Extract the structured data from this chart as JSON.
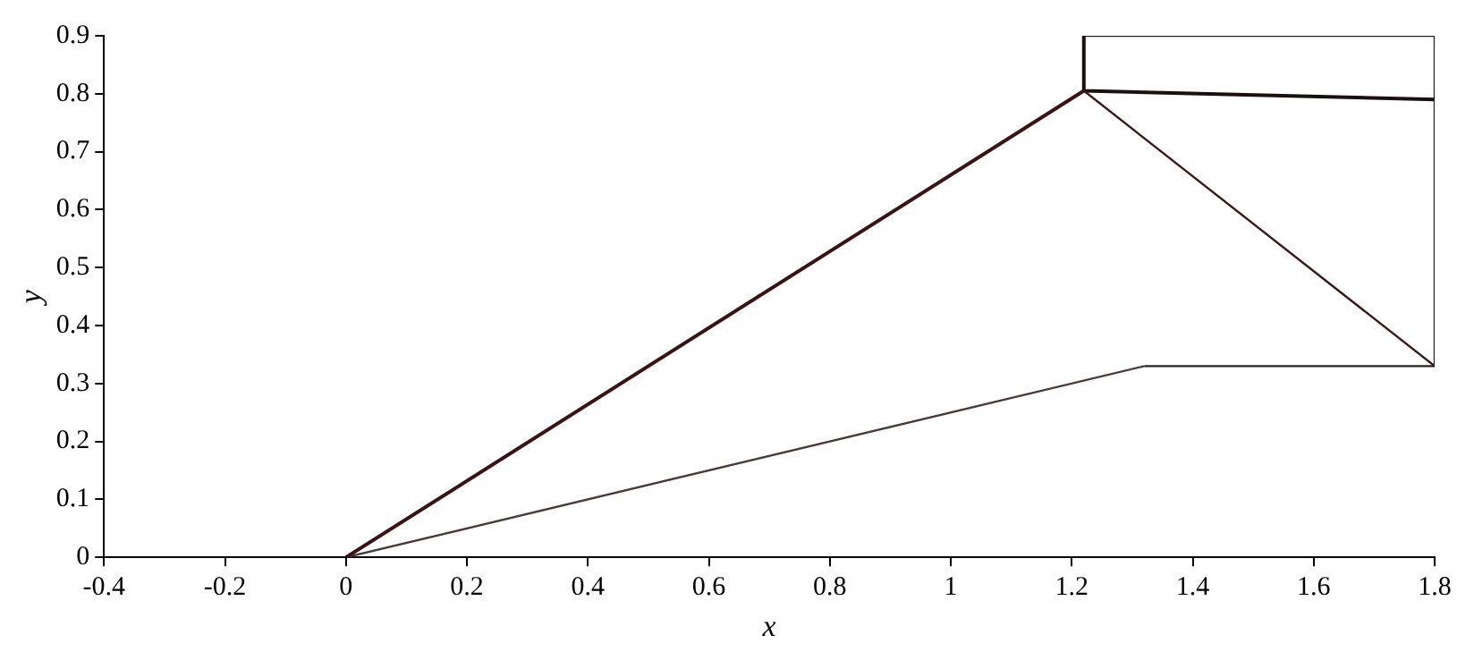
{
  "chart_data": {
    "type": "line",
    "xlabel": "x",
    "ylabel": "y",
    "xlim": [
      -0.4,
      1.8
    ],
    "ylim": [
      0,
      0.9
    ],
    "xticks": [
      -0.4,
      -0.2,
      0,
      0.2,
      0.4,
      0.6,
      0.8,
      1,
      1.2,
      1.4,
      1.6,
      1.8
    ],
    "yticks": [
      0,
      0.1,
      0.2,
      0.3,
      0.4,
      0.5,
      0.6,
      0.7,
      0.8,
      0.9
    ],
    "grid": false,
    "legend": false,
    "marker": "none",
    "line_style": "solid",
    "series": [
      {
        "color": "#3a1414",
        "x": [
          0,
          1.22
        ],
        "values": [
          0,
          0.805
        ]
      },
      {
        "color": "#4a3a3a",
        "x": [
          0,
          1.32
        ],
        "values": [
          0,
          0.33
        ]
      },
      {
        "color": "#3a1a1a",
        "x": [
          1.22,
          1.8
        ],
        "values": [
          0.805,
          0.33
        ]
      },
      {
        "color": "#222222",
        "x": [
          1.32,
          1.8
        ],
        "values": [
          0.33,
          0.33
        ]
      },
      {
        "color": "#1a1010",
        "x": [
          1.22,
          1.22,
          1.8
        ],
        "values": [
          0.9,
          0.805,
          0.79
        ]
      },
      {
        "color": "#222222",
        "x": [
          1.22,
          1.8,
          1.8
        ],
        "values": [
          0.9,
          0.9,
          0.33
        ]
      }
    ]
  }
}
